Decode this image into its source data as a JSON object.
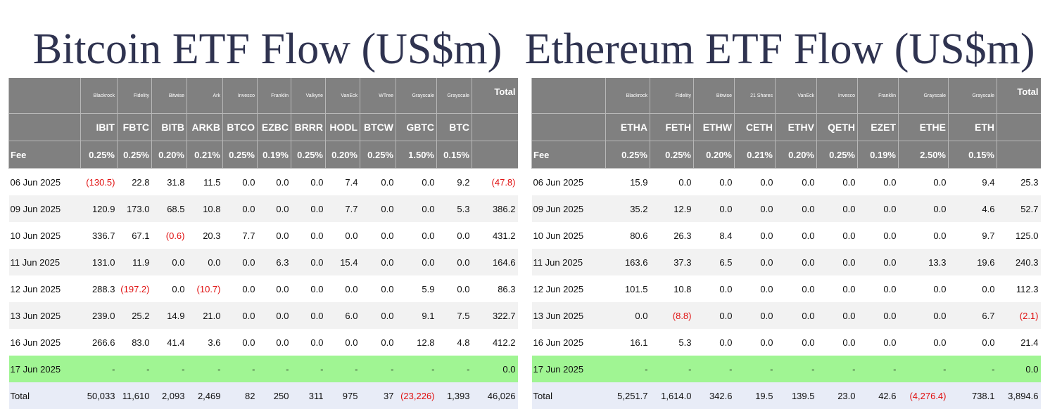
{
  "btc": {
    "title": "Bitcoin ETF Flow (US$m)",
    "issuers": [
      "Blackrock",
      "Fidelity",
      "Bitwise",
      "Ark",
      "Invesco",
      "Franklin",
      "Valkyrie",
      "VanEck",
      "WTree",
      "Grayscale",
      "Grayscale"
    ],
    "total_label": "Total",
    "tickers": [
      "IBIT",
      "FBTC",
      "BITB",
      "ARKB",
      "BTCO",
      "EZBC",
      "BRRR",
      "HODL",
      "BTCW",
      "GBTC",
      "BTC"
    ],
    "fee_label": "Fee",
    "fees": [
      "0.25%",
      "0.25%",
      "0.20%",
      "0.21%",
      "0.25%",
      "0.19%",
      "0.25%",
      "0.20%",
      "0.25%",
      "1.50%",
      "0.15%"
    ],
    "rows": [
      [
        "06 Jun 2025",
        "(130.5)",
        "22.8",
        "31.8",
        "11.5",
        "0.0",
        "0.0",
        "0.0",
        "7.4",
        "0.0",
        "0.0",
        "9.2",
        "(47.8)"
      ],
      [
        "09 Jun 2025",
        "120.9",
        "173.0",
        "68.5",
        "10.8",
        "0.0",
        "0.0",
        "0.0",
        "7.7",
        "0.0",
        "0.0",
        "5.3",
        "386.2"
      ],
      [
        "10 Jun 2025",
        "336.7",
        "67.1",
        "(0.6)",
        "20.3",
        "7.7",
        "0.0",
        "0.0",
        "0.0",
        "0.0",
        "0.0",
        "0.0",
        "431.2"
      ],
      [
        "11 Jun 2025",
        "131.0",
        "11.9",
        "0.0",
        "0.0",
        "0.0",
        "6.3",
        "0.0",
        "15.4",
        "0.0",
        "0.0",
        "0.0",
        "164.6"
      ],
      [
        "12 Jun 2025",
        "288.3",
        "(197.2)",
        "0.0",
        "(10.7)",
        "0.0",
        "0.0",
        "0.0",
        "0.0",
        "0.0",
        "5.9",
        "0.0",
        "86.3"
      ],
      [
        "13 Jun 2025",
        "239.0",
        "25.2",
        "14.9",
        "21.0",
        "0.0",
        "0.0",
        "0.0",
        "6.0",
        "0.0",
        "9.1",
        "7.5",
        "322.7"
      ],
      [
        "16 Jun 2025",
        "266.6",
        "83.0",
        "41.4",
        "3.6",
        "0.0",
        "0.0",
        "0.0",
        "0.0",
        "0.0",
        "12.8",
        "4.8",
        "412.2"
      ],
      [
        "17 Jun 2025",
        "-",
        "-",
        "-",
        "-",
        "-",
        "-",
        "-",
        "-",
        "-",
        "-",
        "-",
        "0.0"
      ]
    ],
    "total_row": [
      "Total",
      "50,033",
      "11,610",
      "2,093",
      "2,469",
      "82",
      "250",
      "311",
      "975",
      "37",
      "(23,226)",
      "1,393",
      "46,026"
    ]
  },
  "eth": {
    "title": "Ethereum ETF Flow (US$m)",
    "issuers": [
      "Blackrock",
      "Fidelity",
      "Bitwise",
      "21 Shares",
      "VanEck",
      "Invesco",
      "Franklin",
      "Grayscale",
      "Grayscale"
    ],
    "total_label": "Total",
    "tickers": [
      "ETHA",
      "FETH",
      "ETHW",
      "CETH",
      "ETHV",
      "QETH",
      "EZET",
      "ETHE",
      "ETH"
    ],
    "fee_label": "Fee",
    "fees": [
      "0.25%",
      "0.25%",
      "0.20%",
      "0.21%",
      "0.20%",
      "0.25%",
      "0.19%",
      "2.50%",
      "0.15%"
    ],
    "rows": [
      [
        "06 Jun 2025",
        "15.9",
        "0.0",
        "0.0",
        "0.0",
        "0.0",
        "0.0",
        "0.0",
        "0.0",
        "9.4",
        "25.3"
      ],
      [
        "09 Jun 2025",
        "35.2",
        "12.9",
        "0.0",
        "0.0",
        "0.0",
        "0.0",
        "0.0",
        "0.0",
        "4.6",
        "52.7"
      ],
      [
        "10 Jun 2025",
        "80.6",
        "26.3",
        "8.4",
        "0.0",
        "0.0",
        "0.0",
        "0.0",
        "0.0",
        "9.7",
        "125.0"
      ],
      [
        "11 Jun 2025",
        "163.6",
        "37.3",
        "6.5",
        "0.0",
        "0.0",
        "0.0",
        "0.0",
        "13.3",
        "19.6",
        "240.3"
      ],
      [
        "12 Jun 2025",
        "101.5",
        "10.8",
        "0.0",
        "0.0",
        "0.0",
        "0.0",
        "0.0",
        "0.0",
        "0.0",
        "112.3"
      ],
      [
        "13 Jun 2025",
        "0.0",
        "(8.8)",
        "0.0",
        "0.0",
        "0.0",
        "0.0",
        "0.0",
        "0.0",
        "6.7",
        "(2.1)"
      ],
      [
        "16 Jun 2025",
        "16.1",
        "5.3",
        "0.0",
        "0.0",
        "0.0",
        "0.0",
        "0.0",
        "0.0",
        "0.0",
        "21.4"
      ],
      [
        "17 Jun 2025",
        "-",
        "-",
        "-",
        "-",
        "-",
        "-",
        "-",
        "-",
        "-",
        "0.0"
      ]
    ],
    "total_row": [
      "Total",
      "5,251.7",
      "1,614.0",
      "342.6",
      "19.5",
      "139.5",
      "23.0",
      "42.6",
      "(4,276.4)",
      "738.1",
      "3,894.6"
    ]
  }
}
